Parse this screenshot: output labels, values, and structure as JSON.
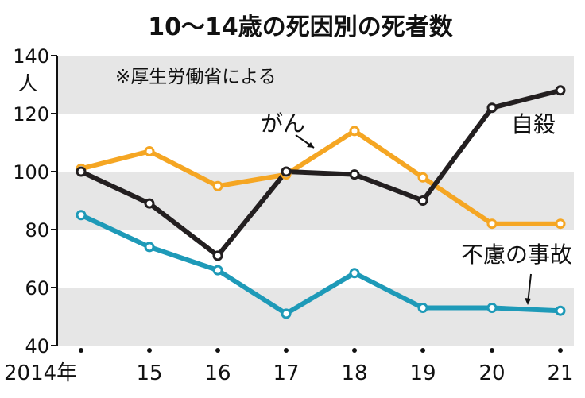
{
  "chart_data": {
    "type": "line",
    "title": "10～14歳の死因別の死者数",
    "source_note": "※厚生労働省による",
    "ylabel": "人",
    "ylim": [
      40,
      140
    ],
    "yticks": [
      40,
      60,
      80,
      100,
      120,
      140
    ],
    "categories": [
      "2014年",
      "15",
      "16",
      "17",
      "18",
      "19",
      "20",
      "21"
    ],
    "series": [
      {
        "name": "がん",
        "color": "#f5a623",
        "values": [
          101,
          107,
          95,
          99,
          114,
          98,
          82,
          82
        ]
      },
      {
        "name": "自殺",
        "color": "#231f20",
        "values": [
          100,
          89,
          71,
          100,
          99,
          90,
          122,
          128
        ]
      },
      {
        "name": "不慮の事故",
        "color": "#1e9ab8",
        "values": [
          85,
          74,
          66,
          51,
          65,
          53,
          53,
          52
        ]
      }
    ],
    "band_color": "#e6e6e6"
  }
}
